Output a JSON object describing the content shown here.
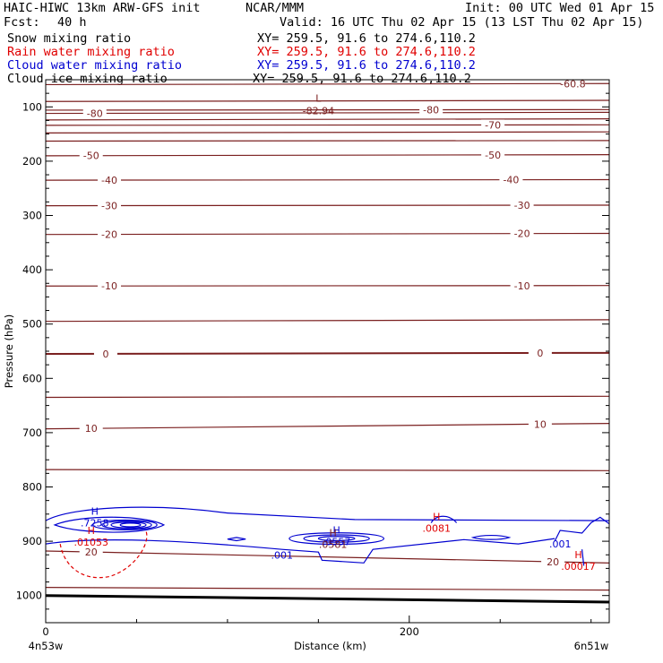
{
  "header": {
    "model": "HAIC-HIWC 13km ARW-GFS init",
    "org": "NCAR/MMM",
    "init": "Init: 00 UTC Wed 01 Apr 15",
    "fcst_label": "Fcst:",
    "fcst_value": "40 h",
    "valid": "Valid: 16 UTC Thu 02 Apr 15 (13 LST Thu 02 Apr 15)",
    "fields": [
      {
        "name": "Snow mixing ratio",
        "xy": "XY= 259.5, 91.6 to 274.6,110.2",
        "color": "#000000"
      },
      {
        "name": "Rain water mixing ratio",
        "xy": "XY= 259.5, 91.6 to 274.6,110.2",
        "color": "#e00000"
      },
      {
        "name": "Cloud water mixing ratio",
        "xy": "XY= 259.5, 91.6 to 274.6,110.2",
        "color": "#0000d0"
      },
      {
        "name": "Cloud ice mixing ratio",
        "xy": "XY= 259.5, 91.6 to 274.6,110.2",
        "color": "#000000"
      }
    ]
  },
  "colors": {
    "temperature": "#7a1f1f",
    "cloud_water": "#0000d0",
    "rain_water": "#e00000",
    "terrain": "#000000"
  },
  "chart_data": {
    "type": "contour-cross-section",
    "xlabel": "Distance (km)",
    "ylabel": "Pressure (hPa)",
    "xlim": [
      0,
      310
    ],
    "ylim": [
      1050,
      50
    ],
    "x_ticks": [
      0,
      200
    ],
    "y_ticks": [
      100,
      200,
      300,
      400,
      500,
      600,
      700,
      800,
      900,
      1000
    ],
    "endpoints": {
      "left": "4n53w",
      "right": "6n51w"
    },
    "temperature_levels": [
      {
        "temp": -60.8,
        "label": "-60.8",
        "p_left": 59,
        "p_right": 57,
        "label_x": 290
      },
      {
        "temp": -80,
        "p_left": 90,
        "p_right": 88
      },
      {
        "temp": -80,
        "label": "-80",
        "p_left": 112,
        "p_right": 110,
        "label_x": 27
      },
      {
        "temp": -80,
        "label": "-80",
        "p_left": 106,
        "p_right": 105,
        "label_x": 212
      },
      {
        "temp": -70,
        "p_left": 124,
        "p_right": 122
      },
      {
        "temp": -70,
        "label": "-70",
        "p_left": 134,
        "p_right": 133,
        "label_x": 246
      },
      {
        "temp": -60,
        "p_left": 148,
        "p_right": 146
      },
      {
        "temp": -60,
        "p_left": 163,
        "p_right": 162
      },
      {
        "temp": -50,
        "label": "-50",
        "p_left": 190,
        "p_right": 188,
        "label_x": 25,
        "label_x2": 246
      },
      {
        "temp": -40,
        "label": "-40",
        "p_left": 235,
        "p_right": 234,
        "label_x": 35,
        "label_x2": 256
      },
      {
        "temp": -30,
        "label": "-30",
        "p_left": 282,
        "p_right": 281,
        "label_x": 35,
        "label_x2": 262
      },
      {
        "temp": -20,
        "label": "-20",
        "p_left": 335,
        "p_right": 333,
        "label_x": 35,
        "label_x2": 262
      },
      {
        "temp": -10,
        "label": "-10",
        "p_left": 430,
        "p_right": 429,
        "label_x": 35,
        "label_x2": 262
      },
      {
        "temp": -5,
        "p_left": 495,
        "p_right": 492
      },
      {
        "temp": 0,
        "label": "0",
        "p_left": 555,
        "p_right": 553,
        "label_x": 33,
        "label_x2": 272,
        "bold": true
      },
      {
        "temp": 5,
        "p_left": 635,
        "p_right": 633
      },
      {
        "temp": 10,
        "label": "10",
        "p_left": 693,
        "p_right": 683,
        "label_x": 25,
        "label_x2": 272
      },
      {
        "temp": 15,
        "p_left": 768,
        "p_right": 770
      },
      {
        "temp": 20,
        "label": "20",
        "p_left": 918,
        "p_right": 940,
        "label_x": 25,
        "label_x2": 279
      },
      {
        "temp": 25,
        "p_left": 985,
        "p_right": 990
      }
    ],
    "minimum_label": {
      "letter": "L",
      "value": "-82.94",
      "x": 150,
      "p": 97
    },
    "maxima": [
      {
        "letter": "H",
        "value": ".7258",
        "color": "#0000d0",
        "x": 27,
        "p": 858
      },
      {
        "letter": "H",
        "value": ".01053",
        "color": "#e00000",
        "x": 25,
        "p": 893
      },
      {
        "letter": "H",
        "value": ".0557",
        "color": "#0000d0",
        "x": 160,
        "p": 892
      },
      {
        "letter": "H",
        "value": ".0581",
        "color": "#7a1f1f",
        "x": 158,
        "p": 897
      },
      {
        "letter": "H",
        "value": ".0081",
        "color": "#e00000",
        "x": 215,
        "p": 868
      },
      {
        "letter": "H",
        "value": ".00017",
        "color": "#e00000",
        "x": 293,
        "p": 938
      }
    ],
    "contour_labels": [
      {
        "text": ".001",
        "color": "#0000d0",
        "x": 130,
        "p": 925
      },
      {
        "text": ".001",
        "color": "#0000d0",
        "x": 283,
        "p": 905
      }
    ]
  }
}
